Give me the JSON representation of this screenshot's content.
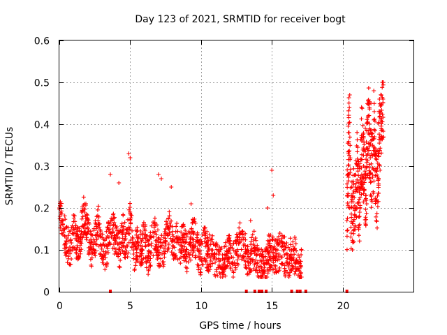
{
  "chart_data": {
    "type": "scatter",
    "title": "Day 123 of 2021, SRMTID for receiver bogt",
    "xlabel": "GPS time / hours",
    "ylabel": "SRMTID / TECUs",
    "xlim": [
      0,
      25
    ],
    "ylim": [
      0,
      0.6
    ],
    "xticks": [
      "0",
      "5",
      "10",
      "15",
      "20"
    ],
    "xtick_values": [
      0,
      5,
      10,
      15,
      20
    ],
    "yticks": [
      "0",
      "0.1",
      "0.2",
      "0.3",
      "0.4",
      "0.5",
      "0.6"
    ],
    "ytick_values": [
      0,
      0.1,
      0.2,
      0.3,
      0.4,
      0.5,
      0.6
    ],
    "grid": true,
    "marker": "+",
    "color": "#ff0000",
    "series": [
      {
        "name": "SRMTID",
        "x": [
          0.0,
          0.25,
          0.5,
          0.75,
          1.0,
          1.25,
          1.5,
          1.75,
          2.0,
          2.25,
          2.5,
          2.75,
          3.0,
          3.25,
          3.5,
          3.75,
          4.0,
          4.25,
          4.5,
          4.75,
          5.0,
          5.25,
          5.5,
          5.75,
          6.0,
          6.25,
          6.5,
          6.75,
          7.0,
          7.25,
          7.5,
          7.75,
          8.0,
          8.25,
          8.5,
          8.75,
          9.0,
          9.25,
          9.5,
          9.75,
          10.0,
          10.25,
          10.5,
          10.75,
          11.0,
          11.25,
          11.5,
          11.75,
          12.0,
          12.25,
          12.5,
          12.75,
          13.0,
          13.25,
          13.5,
          13.75,
          14.0,
          14.25,
          14.5,
          14.75,
          15.0,
          15.25,
          15.5,
          15.75,
          16.0,
          16.25,
          16.5,
          16.75,
          17.0,
          20.3,
          20.45,
          20.6,
          20.75,
          20.9,
          21.05,
          21.2,
          21.35,
          21.5,
          21.65,
          21.8,
          21.95,
          22.1,
          22.25,
          22.4,
          22.55,
          22.7,
          22.85
        ],
        "y": [
          0.2,
          0.16,
          0.12,
          0.1,
          0.15,
          0.11,
          0.13,
          0.19,
          0.14,
          0.1,
          0.12,
          0.16,
          0.11,
          0.09,
          0.13,
          0.15,
          0.12,
          0.1,
          0.14,
          0.11,
          0.17,
          0.09,
          0.12,
          0.1,
          0.13,
          0.08,
          0.11,
          0.14,
          0.1,
          0.09,
          0.12,
          0.15,
          0.11,
          0.13,
          0.1,
          0.12,
          0.09,
          0.11,
          0.14,
          0.1,
          0.08,
          0.12,
          0.09,
          0.1,
          0.07,
          0.09,
          0.06,
          0.08,
          0.1,
          0.07,
          0.09,
          0.12,
          0.11,
          0.08,
          0.09,
          0.1,
          0.07,
          0.06,
          0.05,
          0.09,
          0.1,
          0.08,
          0.09,
          0.11,
          0.07,
          0.08,
          0.1,
          0.07,
          0.06,
          0.17,
          0.38,
          0.14,
          0.2,
          0.25,
          0.3,
          0.19,
          0.36,
          0.27,
          0.23,
          0.42,
          0.32,
          0.28,
          0.37,
          0.22,
          0.33,
          0.41,
          0.46
        ],
        "peaks_x": [
          3.6,
          4.2,
          4.9,
          5.0,
          7.0,
          7.2,
          7.9,
          9.3,
          13.5,
          14.7,
          15.0,
          15.1,
          20.5,
          21.6,
          22.0,
          22.2,
          22.6,
          22.8
        ],
        "peaks_y": [
          0.28,
          0.26,
          0.33,
          0.32,
          0.28,
          0.27,
          0.25,
          0.21,
          0.17,
          0.2,
          0.29,
          0.23,
          0.47,
          0.39,
          0.45,
          0.48,
          0.46,
          0.5
        ]
      }
    ],
    "gap_markers_x": [
      3.6,
      13.2,
      13.8,
      14.1,
      14.3,
      14.6,
      16.4,
      16.8,
      17.0,
      17.4,
      20.3
    ]
  }
}
